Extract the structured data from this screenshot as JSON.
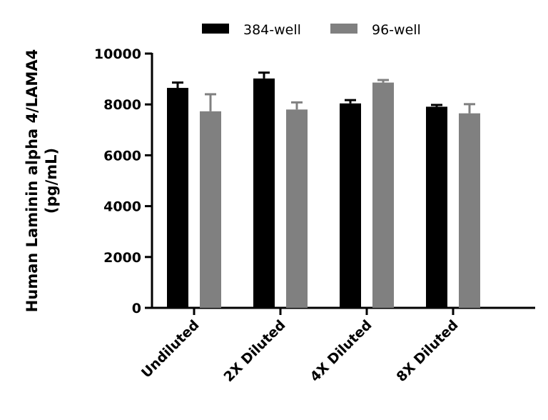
{
  "chart_data": {
    "type": "bar",
    "title": "",
    "xlabel": "",
    "ylabel": "Human Laminin alpha 4/LAMA4 (pg/mL)",
    "ylabel_lines": [
      "Human Laminin alpha 4/LAMA4",
      "(pg/mL)"
    ],
    "ylim": [
      0,
      10000
    ],
    "yticks": [
      0,
      2000,
      4000,
      6000,
      8000,
      10000
    ],
    "categories": [
      "Undiluted",
      "2X Diluted",
      "4X Diluted",
      "8X Diluted"
    ],
    "grid": false,
    "legend_position": "top",
    "series": [
      {
        "name": "384-well",
        "color": "#000000",
        "values": [
          8650,
          9020,
          8040,
          7910
        ],
        "error_upper": [
          8860,
          9250,
          8170,
          7980
        ]
      },
      {
        "name": "96-well",
        "color": "#808080",
        "values": [
          7730,
          7800,
          8860,
          7650
        ],
        "error_upper": [
          8400,
          8080,
          8960,
          8010
        ]
      }
    ]
  }
}
